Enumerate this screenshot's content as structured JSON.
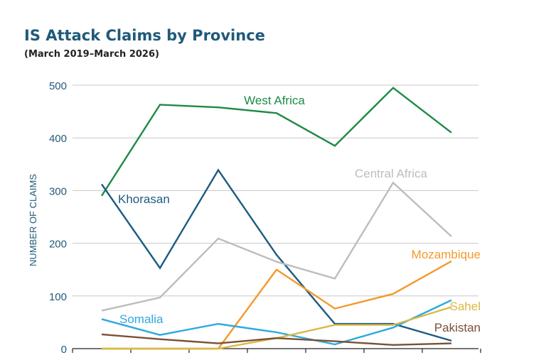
{
  "chart_data": {
    "type": "line",
    "title": "IS Attack Claims by Province",
    "subtitle": "(March 2019–March 2026)",
    "ylabel": "NUMBER OF CLAIMS",
    "xlabel": "",
    "ylim": [
      0,
      500
    ],
    "yticks": [
      0,
      100,
      200,
      300,
      400,
      500
    ],
    "grid": "horizontal",
    "x": [
      1,
      2,
      3,
      4,
      5,
      6,
      7
    ],
    "series": [
      {
        "name": "West Africa",
        "color": "#1e8a46",
        "values": [
          290,
          463,
          458,
          447,
          385,
          495,
          410
        ]
      },
      {
        "name": "Khorasan",
        "color": "#1c5b82",
        "values": [
          312,
          153,
          339,
          178,
          47,
          47,
          15
        ]
      },
      {
        "name": "Central Africa",
        "color": "#bdbdbd",
        "values": [
          72,
          97,
          209,
          165,
          133,
          315,
          213
        ]
      },
      {
        "name": "Mozambique",
        "color": "#f39a2b",
        "values": [
          0,
          0,
          0,
          150,
          76,
          104,
          166
        ]
      },
      {
        "name": "Somalia",
        "color": "#2fa9de",
        "values": [
          56,
          26,
          47,
          31,
          8,
          40,
          92
        ]
      },
      {
        "name": "Sahel",
        "color": "#d9b945",
        "values": [
          0,
          0,
          0,
          20,
          45,
          45,
          79
        ]
      },
      {
        "name": "Pakistan",
        "color": "#7a5134",
        "values": [
          27,
          18,
          10,
          20,
          14,
          7,
          10
        ]
      }
    ]
  }
}
